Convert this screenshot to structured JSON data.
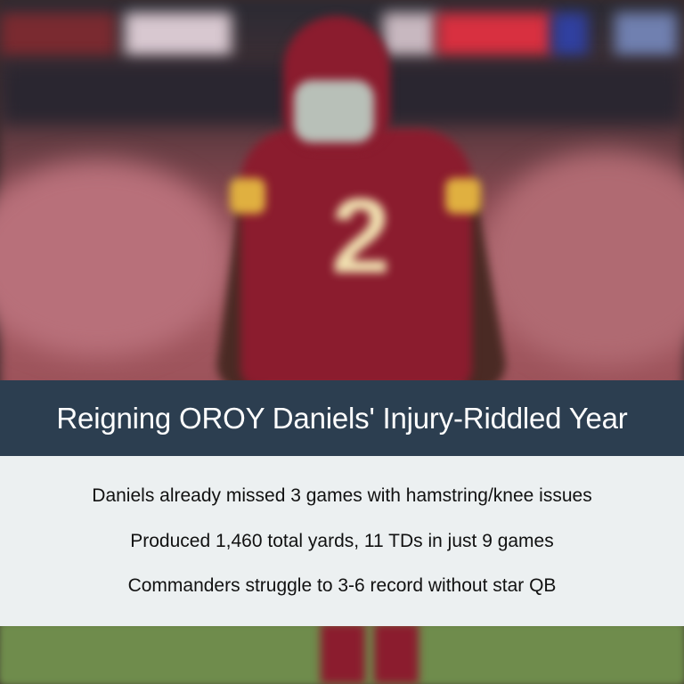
{
  "title": "Reigning OROY Daniels' Injury-Riddled Year",
  "bullets": [
    "Daniels already missed 3 games with hamstring/knee issues",
    "Produced 1,460 total yards, 11 TDs in just 9 games",
    "Commanders struggle to 3-6 record without star QB"
  ],
  "colors": {
    "title_band": "#2c3e50",
    "title_text": "#ffffff",
    "bullet_panel": "#ecf0f1",
    "bullet_text": "#111111",
    "jersey": "#8b1c2e",
    "jersey_trim": "#e0b040"
  },
  "background_image": "blurred photo of football player in burgundy jersey number 2 in stadium"
}
